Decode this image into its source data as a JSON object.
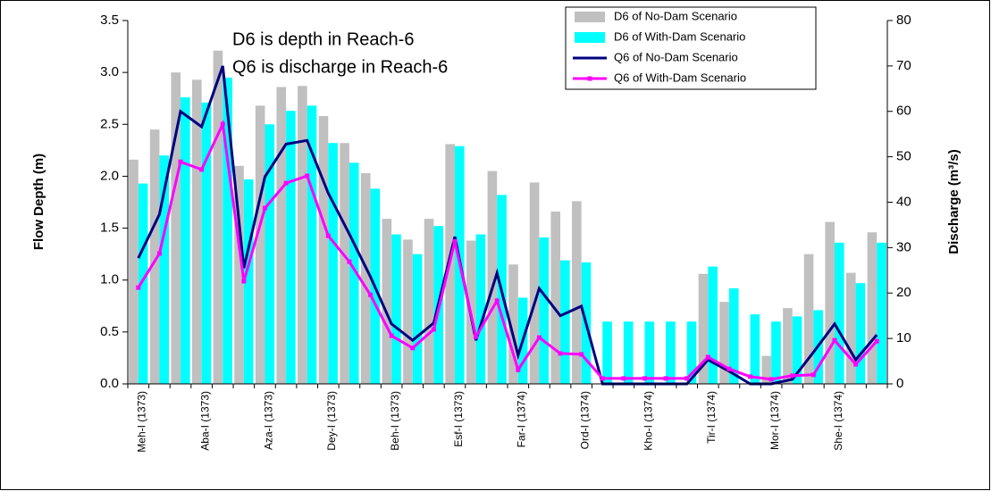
{
  "chart_data": {
    "type": "combo",
    "annotations": [
      "D6 is depth in Reach-6",
      "Q6 is discharge in Reach-6"
    ],
    "ylabel": "Flow Depth (m)",
    "y2label": "Discharge (m³/s)",
    "categories": [
      "Meh-I (1373)",
      null,
      null,
      "Aba-I (1373)",
      null,
      null,
      "Aza-I (1373)",
      null,
      null,
      "Dey-I (1373)",
      null,
      null,
      "Beh-I (1373)",
      null,
      null,
      "Esf-I (1373)",
      null,
      null,
      "Far-I (1374)",
      null,
      null,
      "Ord-I (1374)",
      null,
      null,
      "Kho-I (1374)",
      null,
      null,
      "Tir-I (1374)",
      null,
      null,
      "Mor-I (1374)",
      null,
      null,
      "She-I (1374)",
      null,
      null
    ],
    "series": [
      {
        "name": "D6 of No-Dam Scenario",
        "kind": "bar",
        "axis": "y",
        "color": "#c0c0c0",
        "values": [
          2.16,
          2.45,
          3.0,
          2.93,
          3.21,
          2.1,
          2.68,
          2.86,
          2.87,
          2.58,
          2.32,
          2.03,
          1.59,
          1.39,
          1.59,
          2.31,
          1.38,
          2.05,
          1.15,
          1.94,
          1.66,
          1.76,
          0,
          0,
          0,
          0,
          0,
          1.06,
          0.79,
          0,
          0.27,
          0.73,
          1.25,
          1.56,
          1.07,
          1.46
        ]
      },
      {
        "name": "D6 of With-Dam Scenario",
        "kind": "bar",
        "axis": "y",
        "color": "#00ffff",
        "values": [
          1.93,
          2.2,
          2.76,
          2.71,
          2.95,
          1.97,
          2.5,
          2.63,
          2.68,
          2.32,
          2.13,
          1.88,
          1.44,
          1.25,
          1.52,
          2.29,
          1.44,
          1.82,
          0.83,
          1.41,
          1.19,
          1.17,
          0.6,
          0.6,
          0.6,
          0.6,
          0.6,
          1.13,
          0.92,
          0.67,
          0.6,
          0.65,
          0.71,
          1.36,
          0.97,
          1.36
        ]
      },
      {
        "name": "Q6 of No-Dam Scenario",
        "kind": "line",
        "axis": "y2",
        "color": "#000080",
        "marker": false,
        "values": [
          27.7,
          37.3,
          60,
          56.6,
          70,
          25.5,
          45.6,
          52.8,
          53.6,
          42,
          33,
          23.6,
          13.2,
          9.6,
          13.4,
          32.4,
          9.6,
          24.4,
          6.3,
          21,
          15,
          17.1,
          0,
          0,
          0,
          0,
          0,
          5.3,
          2.8,
          0,
          0,
          1,
          7,
          13.2,
          5.3,
          10.8
        ]
      },
      {
        "name": "Q6 of With-Dam Scenario",
        "kind": "line",
        "axis": "y2",
        "color": "#ff00ff",
        "marker": true,
        "values": [
          21.2,
          28.7,
          48.9,
          47.2,
          57.2,
          22.6,
          38.7,
          44.2,
          45.8,
          32.6,
          26.9,
          19.6,
          10.6,
          7.9,
          12,
          31.4,
          10.4,
          18.3,
          3.1,
          10.2,
          6.7,
          6.5,
          1.2,
          1.2,
          1.2,
          1.2,
          1.2,
          5.9,
          3.3,
          1.6,
          1,
          1.8,
          2,
          9.6,
          4.3,
          9.4
        ]
      }
    ],
    "ylim": [
      0,
      3.5
    ],
    "yticks": [
      {
        "value": 0,
        "label": "0.0"
      },
      0.5,
      {
        "value": 1,
        "label": "1.0"
      },
      1.5,
      {
        "value": 2,
        "label": "2.0"
      },
      2.5,
      {
        "value": 3,
        "label": "3.0"
      },
      3.5
    ],
    "y2lim": [
      0,
      80
    ],
    "y2ticks": [
      0,
      10,
      20,
      30,
      40,
      50,
      60,
      70,
      80
    ],
    "legend": "upper right",
    "grid": false
  }
}
